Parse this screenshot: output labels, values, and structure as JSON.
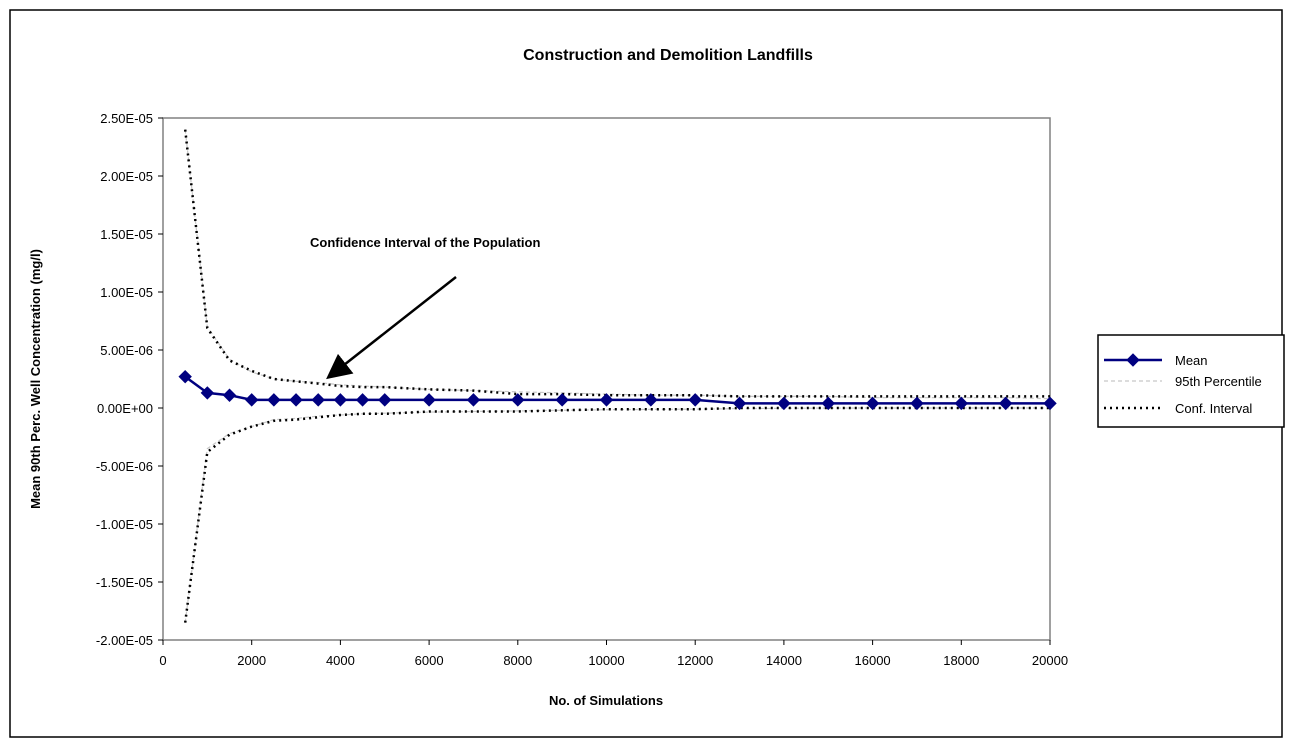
{
  "chart_data": {
    "type": "line",
    "title": "Construction and Demolition Landfills",
    "xlabel": "No. of Simulations",
    "ylabel": "Mean 90th Perc. Well Concentration (mg/l)",
    "xlim": [
      0,
      20000
    ],
    "ylim": [
      -2e-05,
      2.5e-05
    ],
    "x_ticks": [
      0,
      2000,
      4000,
      6000,
      8000,
      10000,
      12000,
      14000,
      16000,
      18000,
      20000
    ],
    "x_tick_labels": [
      "0",
      "2000",
      "4000",
      "6000",
      "8000",
      "10000",
      "12000",
      "14000",
      "16000",
      "18000",
      "20000"
    ],
    "y_ticks": [
      -2e-05,
      -1.5e-05,
      -1e-05,
      -5e-06,
      0,
      5e-06,
      1e-05,
      1.5e-05,
      2e-05,
      2.5e-05
    ],
    "y_tick_labels": [
      "-2.00E-05",
      "-1.50E-05",
      "-1.00E-05",
      "-5.00E-06",
      "0.00E+00",
      "5.00E-06",
      "1.00E-05",
      "1.50E-05",
      "2.00E-05",
      "2.50E-05"
    ],
    "grid": false,
    "legend_position": "right",
    "annotation": "Confidence Interval of the Population",
    "series": [
      {
        "name": "Mean",
        "style": "solid-diamond",
        "color": "#000080",
        "x": [
          500,
          1000,
          1500,
          2000,
          2500,
          3000,
          3500,
          4000,
          4500,
          5000,
          6000,
          7000,
          8000,
          9000,
          10000,
          11000,
          12000,
          13000,
          14000,
          15000,
          16000,
          17000,
          18000,
          19000,
          20000
        ],
        "y": [
          2.7e-06,
          1.3e-06,
          1.1e-06,
          7e-07,
          7e-07,
          7e-07,
          7e-07,
          7e-07,
          7e-07,
          7e-07,
          7e-07,
          7e-07,
          7e-07,
          7e-07,
          7e-07,
          7e-07,
          7e-07,
          4e-07,
          4e-07,
          4e-07,
          4e-07,
          4e-07,
          4e-07,
          4e-07,
          4e-07
        ]
      },
      {
        "name": "95th Percentile",
        "style": "light-dashed",
        "color": "#c8c8c8",
        "x": [
          500,
          1000,
          1500,
          2000,
          2500,
          3000,
          3500,
          4000,
          4500,
          5000,
          6000,
          7000,
          8000,
          9000,
          10000,
          11000,
          12000,
          13000,
          14000,
          15000,
          16000,
          17000,
          18000,
          19000,
          20000
        ],
        "upper": [
          2.4e-05,
          7e-06,
          4.2e-06,
          3.1e-06,
          2.5e-06,
          2.3e-06,
          2.2e-06,
          2e-06,
          1.9e-06,
          1.8e-06,
          1.6e-06,
          1.5e-06,
          1.4e-06,
          1.3e-06,
          1.2e-06,
          1.1e-06,
          1.1e-06,
          1e-06,
          1e-06,
          1e-06,
          9e-07,
          9e-07,
          9e-07,
          9e-07,
          8e-07
        ],
        "lower": [
          -1.85e-05,
          -3.5e-06,
          -2.2e-06,
          -1.6e-06,
          -1e-06,
          -9e-07,
          -7e-07,
          -6e-07,
          -5e-07,
          -4.5e-07,
          -3.5e-07,
          -3e-07,
          -2.5e-07,
          -2e-07,
          -1.5e-07,
          -1.2e-07,
          -1e-07,
          -5e-08,
          -3e-08,
          -1e-08,
          0,
          0,
          0,
          0,
          0
        ]
      },
      {
        "name": "Conf. Interval",
        "style": "dotted",
        "color": "#000000",
        "x": [
          500,
          1000,
          1500,
          2000,
          2500,
          3000,
          3500,
          4000,
          4500,
          5000,
          6000,
          7000,
          8000,
          9000,
          10000,
          11000,
          12000,
          13000,
          14000,
          15000,
          16000,
          17000,
          18000,
          19000,
          20000
        ],
        "upper": [
          2.4e-05,
          6.9e-06,
          4.1e-06,
          3.2e-06,
          2.5e-06,
          2.3e-06,
          2.1e-06,
          1.9e-06,
          1.8e-06,
          1.8e-06,
          1.6e-06,
          1.5e-06,
          1.2e-06,
          1.2e-06,
          1.1e-06,
          1.1e-06,
          1.1e-06,
          1e-06,
          1e-06,
          1e-06,
          1e-06,
          1e-06,
          1e-06,
          1e-06,
          1e-06
        ],
        "lower": [
          -1.85e-05,
          -3.8e-06,
          -2.3e-06,
          -1.6e-06,
          -1.1e-06,
          -1e-06,
          -8e-07,
          -6e-07,
          -5e-07,
          -5e-07,
          -3e-07,
          -3e-07,
          -3e-07,
          -2e-07,
          -1e-07,
          -1e-07,
          -1e-07,
          0,
          0,
          0,
          0,
          0,
          0,
          0,
          0
        ]
      }
    ]
  }
}
